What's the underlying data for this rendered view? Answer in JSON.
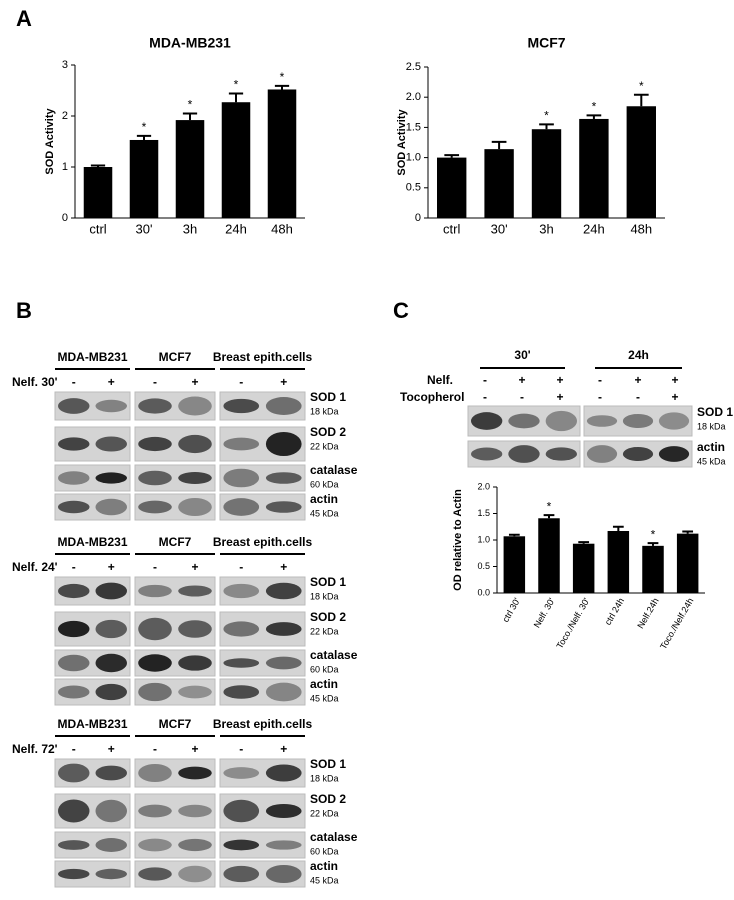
{
  "panel_labels": [
    "A",
    "B",
    "C"
  ],
  "chart_data": [
    {
      "type": "bar",
      "title": "MDA-MB231",
      "y_label": "SOD Activity",
      "categories": [
        "ctrl",
        "30'",
        "3h",
        "24h",
        "48h"
      ],
      "series": [
        {
          "color": "#000000",
          "values": [
            1.0,
            1.53,
            1.92,
            2.27,
            2.52
          ],
          "errors": [
            0.03,
            0.08,
            0.13,
            0.17,
            0.07
          ]
        }
      ],
      "significance": [
        null,
        "*",
        "*",
        "*",
        "*"
      ],
      "ylim": [
        0,
        3
      ],
      "yticks": [
        0,
        1,
        2,
        3
      ]
    },
    {
      "type": "bar",
      "title": "MCF7",
      "y_label": "SOD Activity",
      "categories": [
        "ctrl",
        "30'",
        "3h",
        "24h",
        "48h"
      ],
      "series": [
        {
          "color": "#000000",
          "values": [
            1.0,
            1.14,
            1.47,
            1.64,
            1.85
          ],
          "errors": [
            0.04,
            0.12,
            0.08,
            0.06,
            0.19
          ]
        }
      ],
      "significance": [
        null,
        null,
        "*",
        "*",
        "*"
      ],
      "ylim": [
        0,
        2.5
      ],
      "yticks": [
        0,
        0.5,
        {
          "value": 1,
          "label": "1.0"
        },
        1.5,
        {
          "value": 2,
          "label": "2.0"
        },
        2.5
      ]
    },
    {
      "type": "bar",
      "y_label": "OD relative to Actin",
      "categories": [
        "ctrl 30'",
        "Nelf. 30'",
        "Toco./Nelf. 30'",
        "ctrl 24h",
        "Nelf.24h",
        "Toco./Nelf.24h"
      ],
      "series": [
        {
          "color": "#000000",
          "values": [
            1.07,
            1.41,
            0.93,
            1.17,
            0.89,
            1.12
          ],
          "errors": [
            0.03,
            0.06,
            0.03,
            0.08,
            0.05,
            0.04
          ]
        }
      ],
      "significance": [
        null,
        "*",
        null,
        null,
        "*",
        null
      ],
      "ylim": [
        0,
        2
      ],
      "yticks": [
        {
          "value": 0,
          "label": "0.0"
        },
        0.5,
        {
          "value": 1,
          "label": "1.0"
        },
        1.5,
        {
          "value": 2,
          "label": "2.0"
        }
      ]
    }
  ],
  "blots_b": {
    "cell_lines": [
      "MDA-MB231",
      "MCF7",
      "Breast epith.cells"
    ],
    "treatments": [
      "Nelf. 30'",
      "Nelf. 24'",
      "Nelf. 72'"
    ],
    "lane_signs": [
      "-",
      "+",
      "-",
      "+",
      "-",
      "+"
    ],
    "proteins": [
      {
        "name": "SOD 1",
        "size": "18 kDa"
      },
      {
        "name": "SOD 2",
        "size": "22 kDa"
      },
      {
        "name": "catalase",
        "size": "60 kDa"
      },
      {
        "name": "actin",
        "size": "45 kDa"
      }
    ]
  },
  "blots_c": {
    "time_points": [
      "30'",
      "24h"
    ],
    "rows": [
      {
        "label": "Nelf.",
        "signs": [
          "-",
          "+",
          "+",
          "-",
          "+",
          "+"
        ]
      },
      {
        "label": "Tocopherol",
        "signs": [
          "-",
          "-",
          "+",
          "-",
          "-",
          "+"
        ]
      }
    ],
    "proteins": [
      {
        "name": "SOD 1",
        "size": "18 kDa"
      },
      {
        "name": "actin",
        "size": "45 kDa"
      }
    ]
  }
}
